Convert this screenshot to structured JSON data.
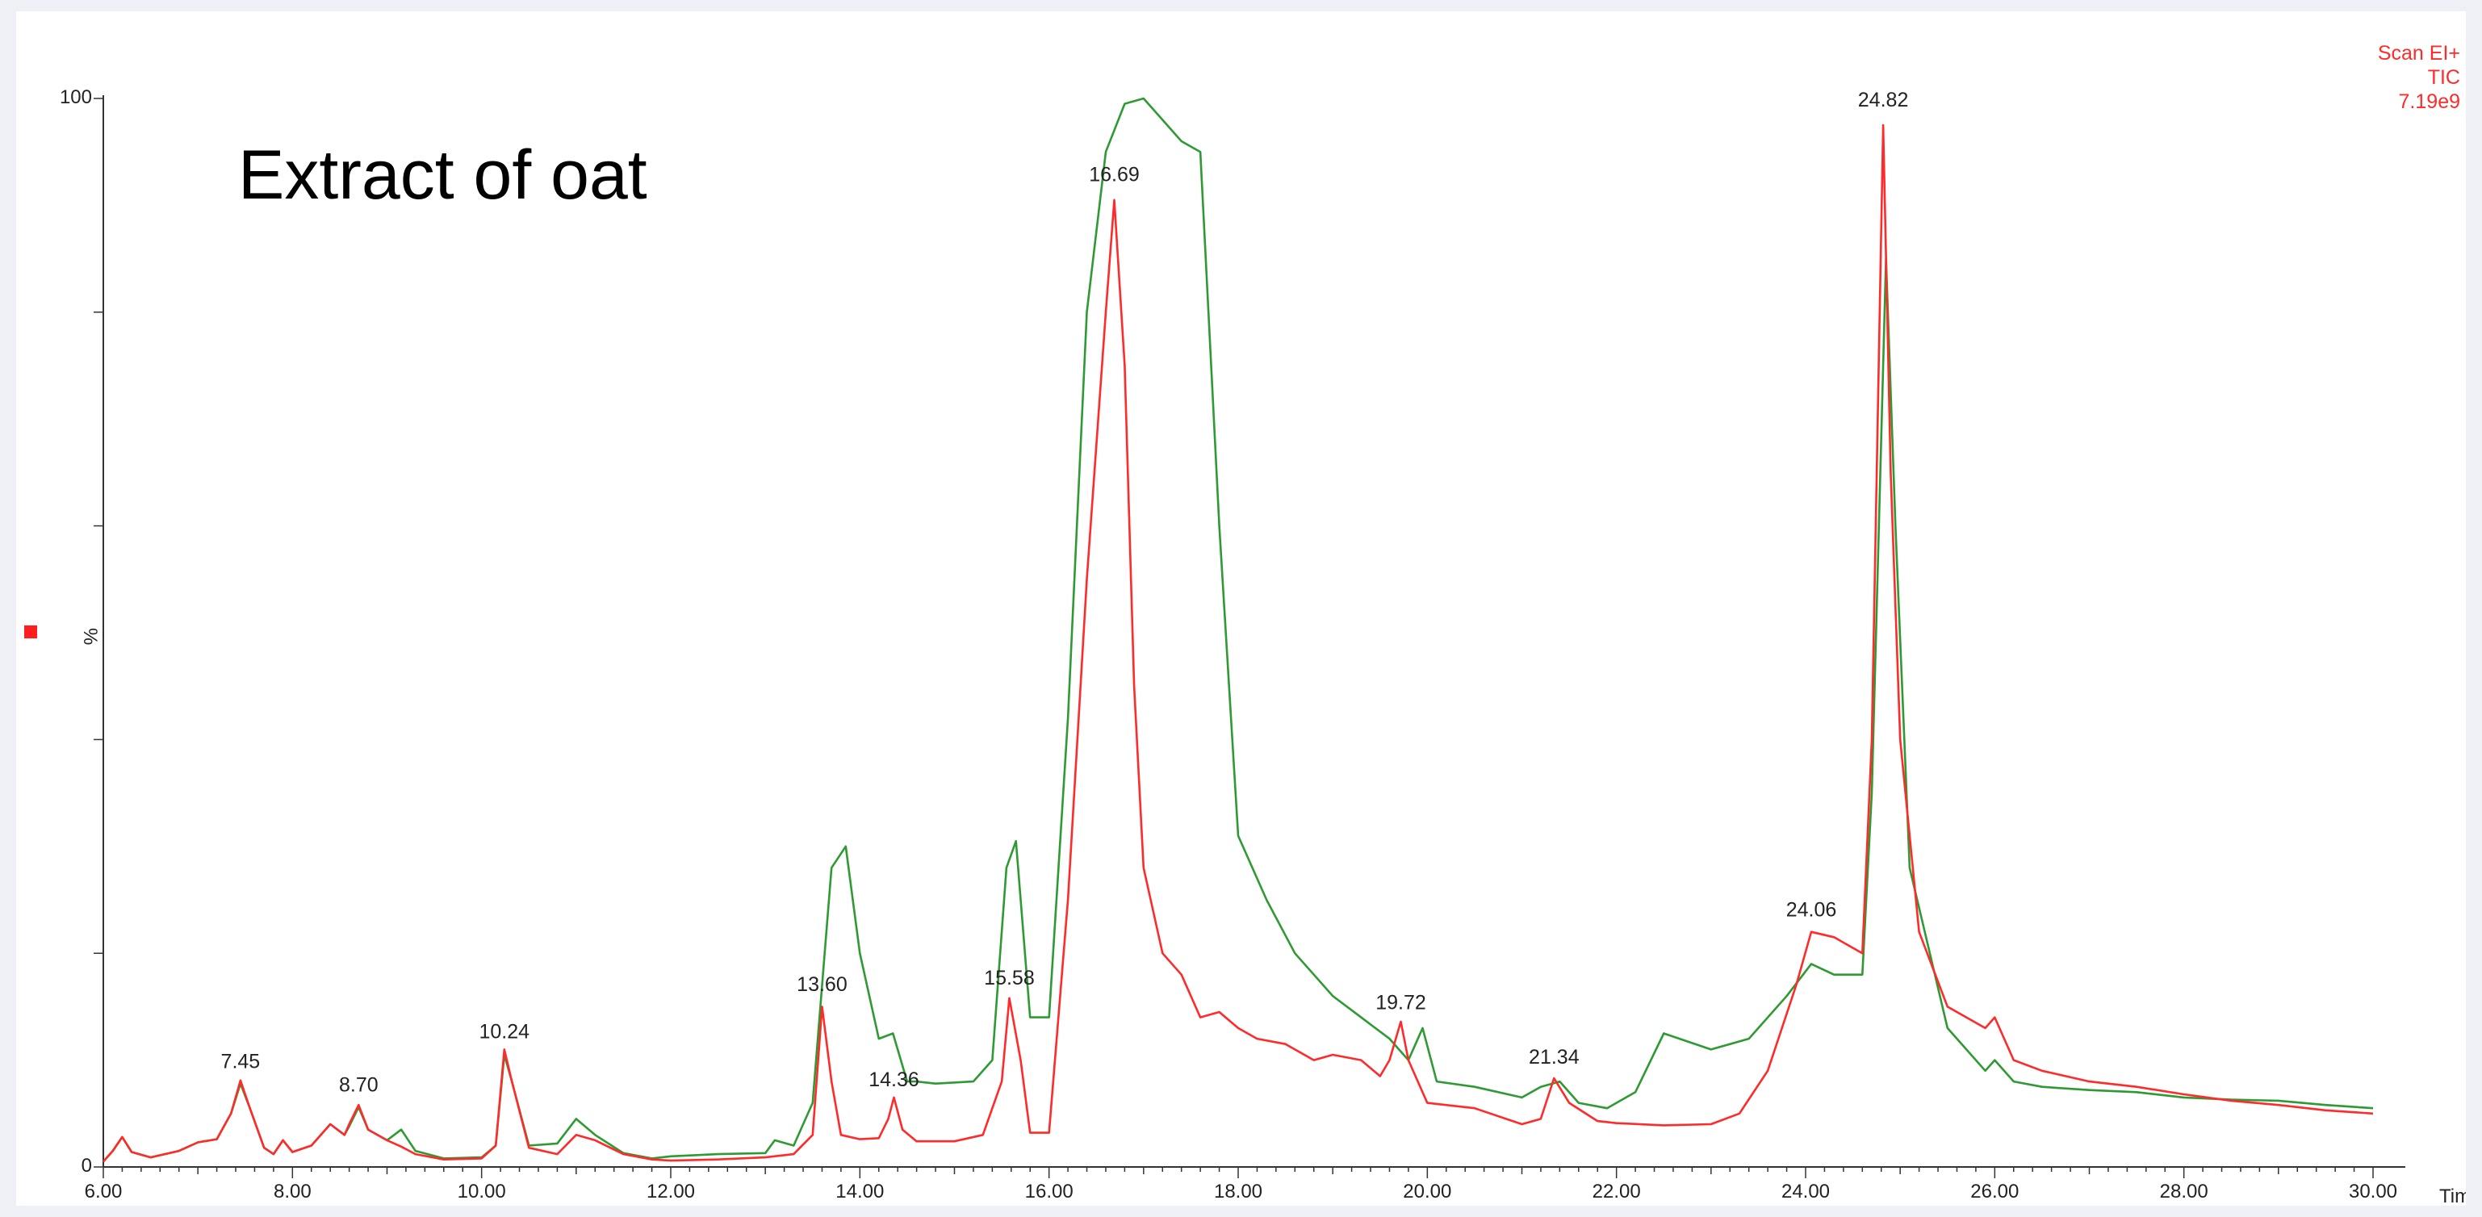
{
  "chart_data": {
    "type": "line",
    "title": "Extract of oat",
    "xlabel": "Time",
    "ylabel": "%",
    "xlim": [
      6.0,
      30.0
    ],
    "ylim": [
      0,
      100
    ],
    "x_ticks": [
      "6.00",
      "8.00",
      "10.00",
      "12.00",
      "14.00",
      "16.00",
      "18.00",
      "20.00",
      "22.00",
      "24.00",
      "26.00",
      "28.00",
      "30.00"
    ],
    "y_ticks": [
      "0",
      "100"
    ],
    "corner_labels": [
      "Scan EI+",
      "TIC",
      "7.19e9"
    ],
    "peak_labels": [
      {
        "x": 7.45,
        "label": "7.45",
        "y": 8.5
      },
      {
        "x": 8.7,
        "label": "8.70",
        "y": 6.3
      },
      {
        "x": 10.24,
        "label": "10.24",
        "y": 11.3
      },
      {
        "x": 13.6,
        "label": "13.60",
        "y": 15.7
      },
      {
        "x": 14.36,
        "label": "14.36",
        "y": 6.8
      },
      {
        "x": 15.58,
        "label": "15.58",
        "y": 16.3
      },
      {
        "x": 16.69,
        "label": "16.69",
        "y": 91.5
      },
      {
        "x": 19.72,
        "label": "19.72",
        "y": 14.0
      },
      {
        "x": 21.34,
        "label": "21.34",
        "y": 8.9
      },
      {
        "x": 24.06,
        "label": "24.06",
        "y": 22.7
      },
      {
        "x": 24.82,
        "label": "24.82",
        "y": 98.5
      }
    ],
    "series": [
      {
        "color": "#ff2a2a",
        "x": [
          6.0,
          6.1,
          6.2,
          6.3,
          6.5,
          6.8,
          7.0,
          7.2,
          7.35,
          7.45,
          7.55,
          7.7,
          7.8,
          7.9,
          8.0,
          8.2,
          8.4,
          8.55,
          8.6,
          8.7,
          8.8,
          9.0,
          9.15,
          9.3,
          9.6,
          10.0,
          10.15,
          10.24,
          10.32,
          10.5,
          10.8,
          11.0,
          11.2,
          11.5,
          11.8,
          12.0,
          12.5,
          13.0,
          13.3,
          13.5,
          13.6,
          13.7,
          13.8,
          14.0,
          14.2,
          14.3,
          14.36,
          14.45,
          14.6,
          15.0,
          15.3,
          15.5,
          15.58,
          15.7,
          15.8,
          16.0,
          16.2,
          16.4,
          16.6,
          16.69,
          16.8,
          16.9,
          17.0,
          17.2,
          17.4,
          17.6,
          17.8,
          18.0,
          18.2,
          18.5,
          18.8,
          19.0,
          19.3,
          19.5,
          19.6,
          19.72,
          19.8,
          20.0,
          20.5,
          21.0,
          21.2,
          21.34,
          21.5,
          21.8,
          22.0,
          22.5,
          23.0,
          23.3,
          23.6,
          23.9,
          24.06,
          24.3,
          24.6,
          24.7,
          24.82,
          24.9,
          25.0,
          25.2,
          25.5,
          25.9,
          26.0,
          26.2,
          26.5,
          27.0,
          27.5,
          28.0,
          28.5,
          29.0,
          29.5,
          30.0
        ],
        "y": [
          0.5,
          1.5,
          2.8,
          1.4,
          0.9,
          1.5,
          2.3,
          2.6,
          5.0,
          8.1,
          5.5,
          1.8,
          1.2,
          2.5,
          1.4,
          2.0,
          4.0,
          3.0,
          4.0,
          5.8,
          3.5,
          2.5,
          1.9,
          1.2,
          0.7,
          0.8,
          2.0,
          11.0,
          8.0,
          1.8,
          1.2,
          3.0,
          2.5,
          1.2,
          0.7,
          0.6,
          0.7,
          0.9,
          1.2,
          3.0,
          15.0,
          8.0,
          3.0,
          2.6,
          2.7,
          4.5,
          6.5,
          3.5,
          2.4,
          2.4,
          3.0,
          8.0,
          15.8,
          10.0,
          3.2,
          3.2,
          25.0,
          55.0,
          80.0,
          90.5,
          75.0,
          45.0,
          28.0,
          20.0,
          18.0,
          14.0,
          14.5,
          13.0,
          12.0,
          11.5,
          10.0,
          10.5,
          10.0,
          8.5,
          10.0,
          13.6,
          10.0,
          6.0,
          5.5,
          4.0,
          4.5,
          8.3,
          6.0,
          4.3,
          4.1,
          3.9,
          4.0,
          5.0,
          9.0,
          17.0,
          22.0,
          21.5,
          20.0,
          40.0,
          97.5,
          65.0,
          40.0,
          22.0,
          15.0,
          13.0,
          14.0,
          10.0,
          9.0,
          8.0,
          7.5,
          6.8,
          6.2,
          5.8,
          5.3,
          5.0
        ]
      },
      {
        "color": "#2e9a33",
        "x": [
          6.0,
          6.1,
          6.2,
          6.3,
          6.5,
          6.8,
          7.0,
          7.2,
          7.35,
          7.45,
          7.55,
          7.7,
          7.8,
          7.9,
          8.0,
          8.2,
          8.4,
          8.55,
          8.6,
          8.7,
          8.8,
          9.0,
          9.15,
          9.3,
          9.6,
          10.0,
          10.15,
          10.24,
          10.32,
          10.5,
          10.8,
          11.0,
          11.2,
          11.5,
          11.8,
          12.0,
          12.5,
          13.0,
          13.1,
          13.3,
          13.5,
          13.7,
          13.85,
          14.0,
          14.2,
          14.35,
          14.5,
          14.6,
          14.8,
          15.2,
          15.4,
          15.55,
          15.65,
          15.8,
          16.0,
          16.2,
          16.4,
          16.6,
          16.8,
          17.0,
          17.2,
          17.4,
          17.6,
          17.8,
          18.0,
          18.3,
          18.6,
          19.0,
          19.3,
          19.6,
          19.8,
          19.95,
          20.1,
          20.5,
          21.0,
          21.2,
          21.4,
          21.6,
          21.9,
          22.2,
          22.5,
          23.0,
          23.4,
          23.8,
          24.06,
          24.3,
          24.6,
          24.7,
          24.85,
          24.95,
          25.1,
          25.5,
          25.9,
          26.0,
          26.2,
          26.5,
          27.0,
          27.5,
          28.0,
          28.5,
          29.0,
          29.5,
          30.0
        ],
        "y": [
          0.5,
          1.5,
          2.8,
          1.4,
          0.9,
          1.5,
          2.3,
          2.6,
          5.0,
          7.8,
          5.5,
          1.8,
          1.2,
          2.5,
          1.4,
          2.0,
          4.0,
          3.0,
          3.8,
          5.6,
          3.5,
          2.5,
          3.5,
          1.5,
          0.8,
          0.9,
          2.0,
          10.5,
          8.0,
          2.0,
          2.2,
          4.5,
          3.0,
          1.3,
          0.8,
          1.0,
          1.2,
          1.3,
          2.5,
          2.0,
          6.0,
          28.0,
          30.0,
          20.0,
          12.0,
          12.5,
          8.0,
          8.0,
          7.8,
          8.0,
          10.0,
          28.0,
          30.5,
          14.0,
          14.0,
          42.0,
          80.0,
          95.0,
          99.5,
          100.0,
          98.0,
          96.0,
          95.0,
          60.0,
          31.0,
          25.0,
          20.0,
          16.0,
          14.0,
          12.0,
          10.0,
          13.0,
          8.0,
          7.5,
          6.5,
          7.5,
          8.0,
          6.0,
          5.5,
          7.0,
          12.5,
          11.0,
          12.0,
          16.0,
          19.0,
          18.0,
          18.0,
          35.0,
          85.0,
          60.0,
          28.0,
          13.0,
          9.0,
          10.0,
          8.0,
          7.5,
          7.2,
          7.0,
          6.5,
          6.3,
          6.2,
          5.8,
          5.5
        ]
      }
    ]
  }
}
